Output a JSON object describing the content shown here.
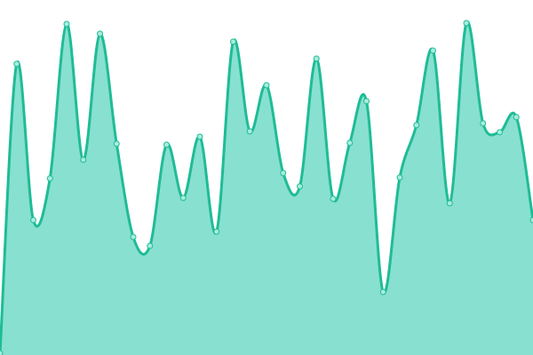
{
  "chart_data": {
    "type": "area",
    "title": "",
    "xlabel": "",
    "ylabel": "",
    "x": [
      0,
      1,
      2,
      3,
      4,
      5,
      6,
      7,
      8,
      9,
      10,
      11,
      12,
      13,
      14,
      15,
      16,
      17,
      18,
      19,
      20,
      21,
      22,
      23,
      24,
      25,
      26,
      27,
      28,
      29,
      30,
      31,
      32
    ],
    "values": [
      2,
      328,
      152,
      199,
      373,
      220,
      362,
      238,
      133,
      123,
      237,
      177,
      246,
      139,
      353,
      252,
      304,
      205,
      190,
      334,
      176,
      239,
      286,
      71,
      200,
      259,
      343,
      171,
      374,
      261,
      251,
      268,
      152
    ],
    "ylim": [
      0,
      400
    ],
    "grid": false,
    "axes_visible": false,
    "smooth": true,
    "colors": {
      "line": "#1fbc96",
      "fill": "#88e0d0",
      "marker_fill": "#a8ecdc",
      "marker_stroke": "#1fbc96"
    }
  }
}
